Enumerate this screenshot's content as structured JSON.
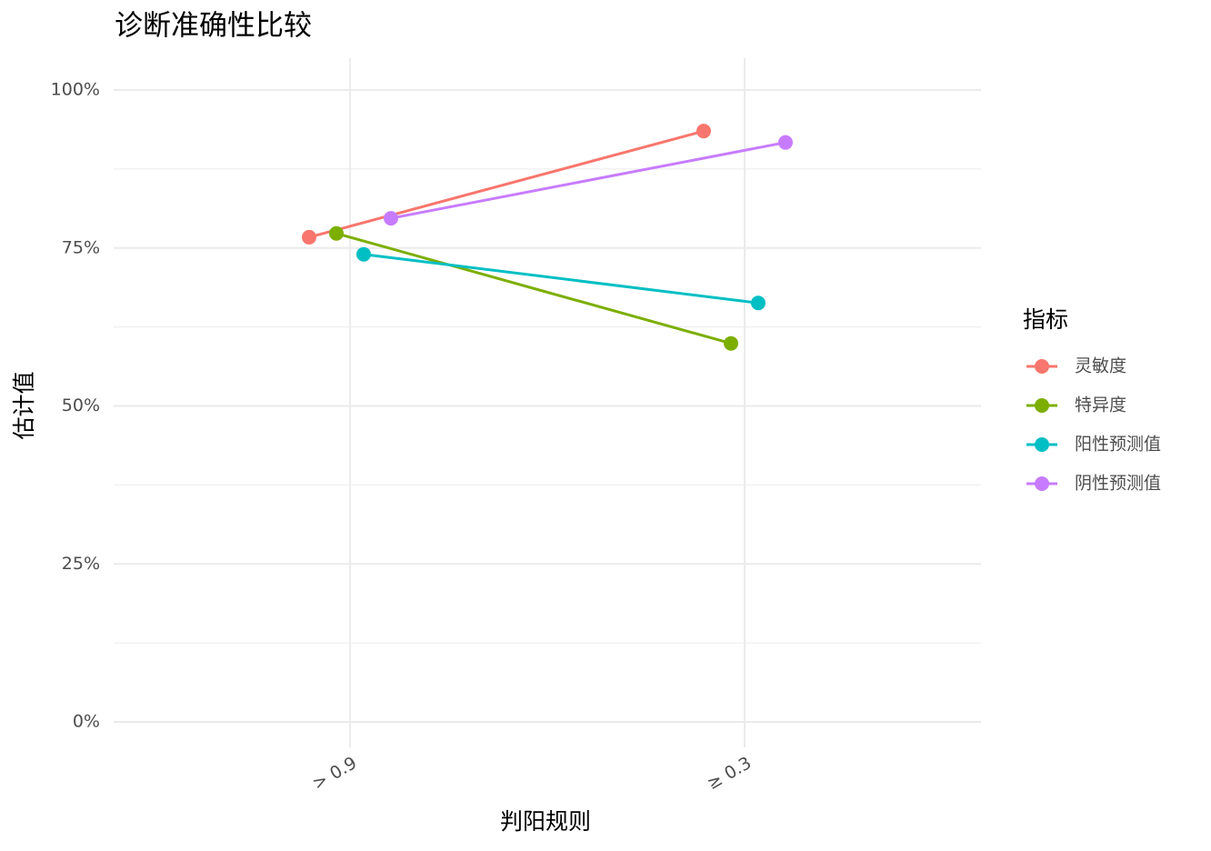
{
  "chart_data": {
    "type": "line",
    "title": "诊断准确性比较",
    "x_label": "判阳规则",
    "y_label": "估计值",
    "categories": [
      "> 0.9",
      "≥ 0.3"
    ],
    "series": [
      {
        "name": "灵敏度",
        "color": "#F8766D",
        "values": [
          76.7,
          93.5
        ]
      },
      {
        "name": "特异度",
        "color": "#7CAE00",
        "values": [
          77.3,
          59.9
        ]
      },
      {
        "name": "阳性预测值",
        "color": "#00BFC4",
        "values": [
          74.0,
          66.3
        ]
      },
      {
        "name": "阴性预测值",
        "color": "#C77CFF",
        "values": [
          79.7,
          91.7
        ]
      }
    ],
    "ylim": [
      0,
      100
    ],
    "yticks": [
      {
        "value": 0,
        "label": "0%"
      },
      {
        "value": 25,
        "label": "25%"
      },
      {
        "value": 50,
        "label": "50%"
      },
      {
        "value": 75,
        "label": "75%"
      },
      {
        "value": 100,
        "label": "100%"
      }
    ],
    "grid": true,
    "legend_title": "指标",
    "legend_position": "right"
  }
}
